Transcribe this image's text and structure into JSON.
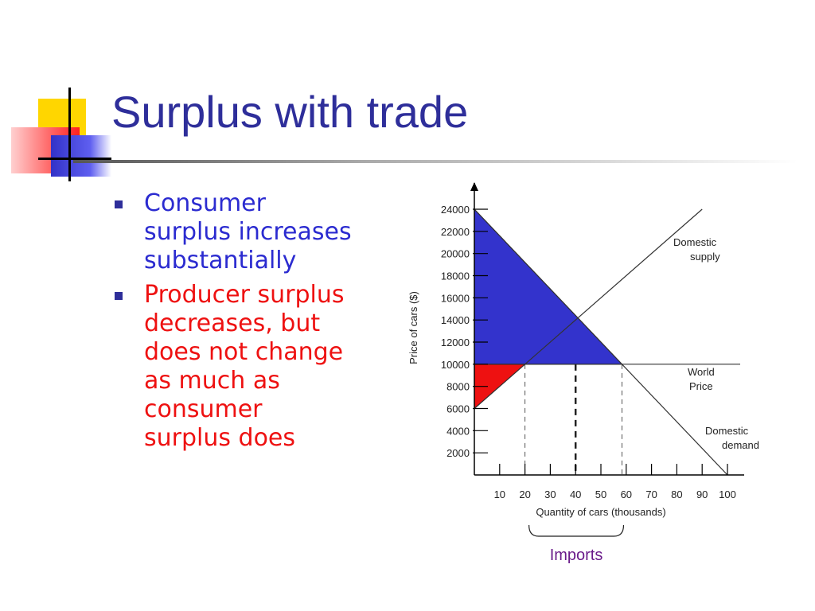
{
  "slide": {
    "title": "Surplus with trade",
    "bullets": [
      {
        "text": "Consumer surplus increases substantially",
        "lines": [
          "Consumer",
          "surplus increases",
          "substantially"
        ],
        "color": "#2b2bd0"
      },
      {
        "text": "Producer surplus decreases, but does not change as much as consumer surplus does",
        "lines": [
          "Producer surplus",
          "decreases, but",
          "does not change",
          "as much as",
          "consumer",
          "surplus does"
        ],
        "color": "#ee1111"
      }
    ]
  },
  "chart_data": {
    "type": "line",
    "xlabel": "Quantity of cars (thousands)",
    "ylabel": "Price of cars ($)",
    "x_ticks": [
      10,
      20,
      30,
      40,
      50,
      60,
      70,
      80,
      90,
      100
    ],
    "y_ticks": [
      2000,
      4000,
      6000,
      8000,
      10000,
      12000,
      14000,
      16000,
      18000,
      20000,
      22000,
      24000
    ],
    "xlim": [
      0,
      100
    ],
    "ylim": [
      0,
      24000
    ],
    "grid": false,
    "series": [
      {
        "name": "Domestic supply",
        "points": [
          [
            0,
            6000
          ],
          [
            90,
            24000
          ]
        ],
        "label_lines": [
          "Domestic",
          "supply"
        ]
      },
      {
        "name": "Domestic demand",
        "points": [
          [
            0,
            24000
          ],
          [
            100,
            0
          ]
        ],
        "label_lines": [
          "Domestic",
          "demand"
        ]
      },
      {
        "name": "World Price",
        "points": [
          [
            0,
            10000
          ],
          [
            100,
            10000
          ]
        ],
        "label_lines": [
          "World",
          "Price"
        ]
      }
    ],
    "areas": [
      {
        "name": "consumer surplus",
        "points": [
          [
            0,
            24000
          ],
          [
            0,
            10000
          ],
          [
            58.33,
            10000
          ]
        ],
        "color": "#3333cc"
      },
      {
        "name": "producer surplus",
        "points": [
          [
            0,
            10000
          ],
          [
            0,
            6000
          ],
          [
            20,
            10000
          ]
        ],
        "color": "#ee1111"
      }
    ],
    "reference_lines": [
      {
        "x": 20,
        "style": "dashed",
        "weight": "thin"
      },
      {
        "x": 40,
        "style": "dashed",
        "weight": "thick"
      },
      {
        "x": 58.33,
        "style": "dashed",
        "weight": "thin"
      }
    ],
    "annotations": [
      {
        "text": "Imports",
        "from_x": 20,
        "to_x": 58.33,
        "color": "#6a1b8a"
      }
    ]
  }
}
